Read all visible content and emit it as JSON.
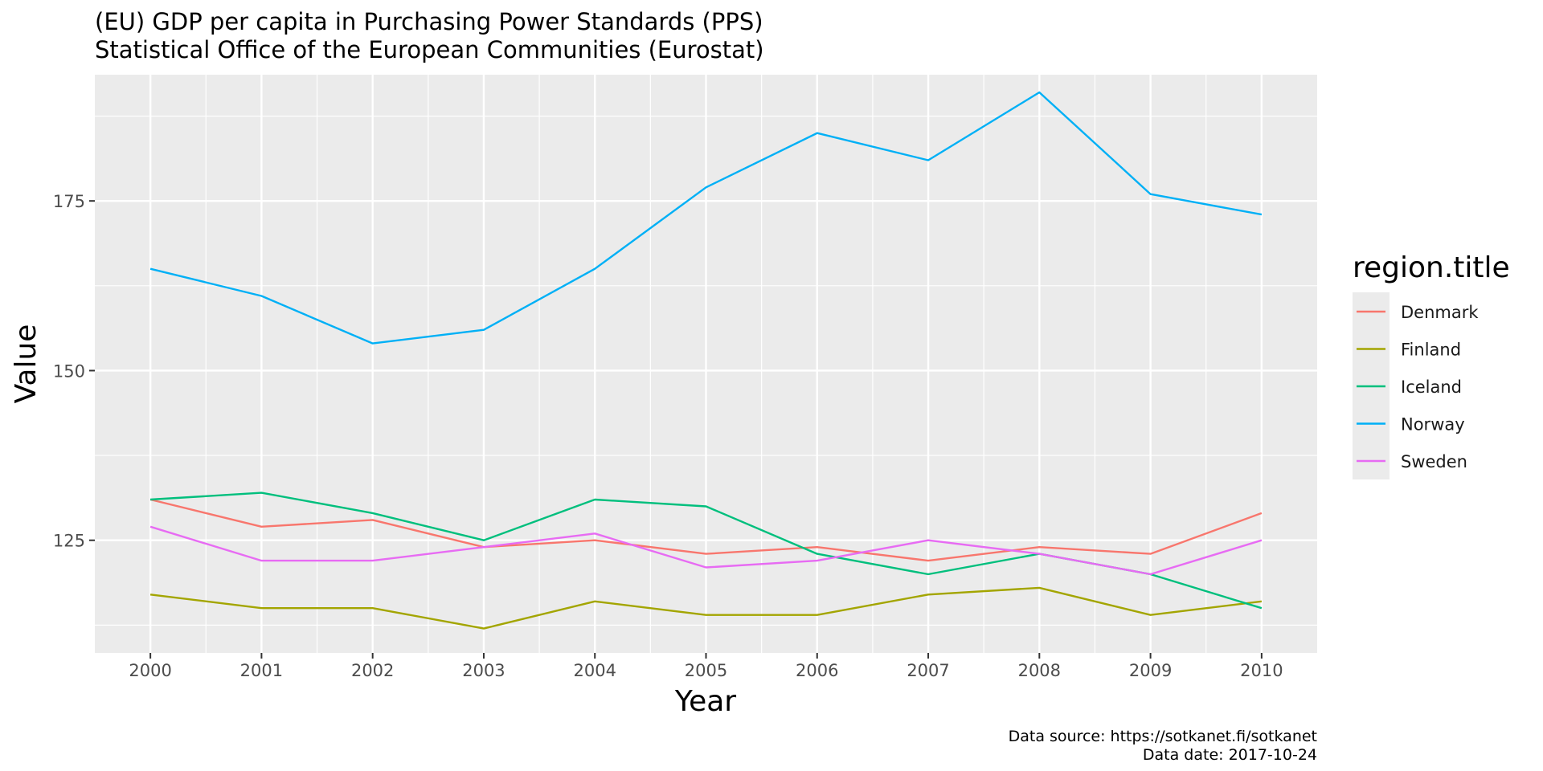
{
  "chart_data": {
    "type": "line",
    "title": "(EU) GDP per capita in Purchasing Power Standards (PPS)",
    "subtitle": "Statistical Office of the European Communities (Eurostat)",
    "xlabel": "Year",
    "ylabel": "Value",
    "x": [
      2000,
      2001,
      2002,
      2003,
      2004,
      2005,
      2006,
      2007,
      2008,
      2009,
      2010
    ],
    "x_ticks": [
      "2000",
      "2001",
      "2002",
      "2003",
      "2004",
      "2005",
      "2006",
      "2007",
      "2008",
      "2009",
      "2010"
    ],
    "y_ticks": [
      "125",
      "150",
      "175"
    ],
    "y_tick_values": [
      125,
      150,
      175
    ],
    "xlim": [
      1999.5,
      2010.5
    ],
    "ylim": [
      108.4,
      193.6
    ],
    "grid": true,
    "legend": {
      "title": "region.title",
      "position": "right"
    },
    "series": [
      {
        "name": "Denmark",
        "color": "#F8766D",
        "values": [
          131,
          127,
          128,
          124,
          125,
          123,
          124,
          122,
          124,
          123,
          129
        ]
      },
      {
        "name": "Finland",
        "color": "#A3A500",
        "values": [
          117,
          115,
          115,
          112,
          116,
          114,
          114,
          117,
          118,
          114,
          116
        ]
      },
      {
        "name": "Iceland",
        "color": "#00BF7D",
        "values": [
          131,
          132,
          129,
          125,
          131,
          130,
          123,
          120,
          123,
          120,
          115
        ]
      },
      {
        "name": "Norway",
        "color": "#00B0F6",
        "values": [
          165,
          161,
          154,
          156,
          165,
          177,
          185,
          181,
          191,
          176,
          173
        ]
      },
      {
        "name": "Sweden",
        "color": "#E76BF3",
        "values": [
          127,
          122,
          122,
          124,
          126,
          121,
          122,
          125,
          123,
          120,
          125
        ]
      }
    ],
    "caption": [
      "Data source: https://sotkanet.fi/sotkanet",
      "Data date: 2017-10-24"
    ]
  }
}
